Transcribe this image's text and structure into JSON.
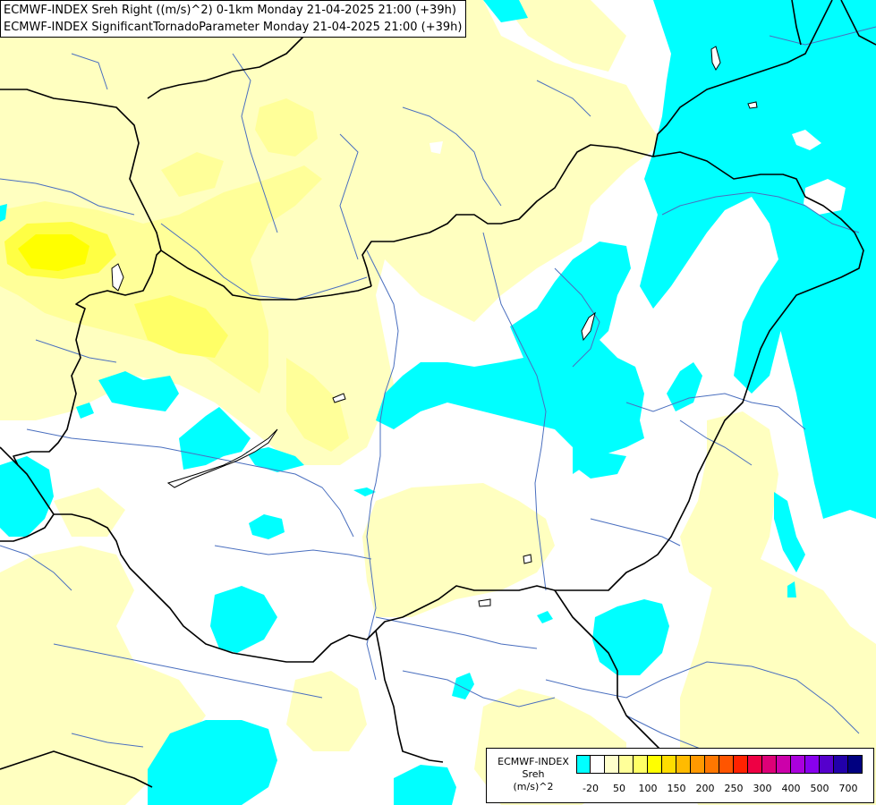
{
  "header": {
    "line1": "ECMWF-INDEX Sreh Right ((m/s)^2) 0-1km Monday 21-04-2025 21:00 (+39h)",
    "line2": "ECMWF-INDEX SignificantTornadoParameter Monday 21-04-2025 21:00 (+39h)"
  },
  "legend": {
    "line1": "ECMWF-INDEX",
    "line2": "Sreh",
    "line3": "(m/s)^2",
    "tick_labels": [
      "-20",
      "50",
      "100",
      "150",
      "200",
      "250",
      "300",
      "400",
      "500",
      "700"
    ],
    "colors": [
      "#00ffff",
      "#ffffff",
      "#ffffcc",
      "#ffff99",
      "#ffff66",
      "#ffff00",
      "#ffdd00",
      "#ffbb00",
      "#ff9900",
      "#ff7700",
      "#ff5500",
      "#ff2200",
      "#ee0044",
      "#dd0077",
      "#cc00aa",
      "#aa00dd",
      "#8800ee",
      "#5500cc",
      "#2200aa",
      "#000080"
    ]
  },
  "palette": {
    "cyan": "#00ffff",
    "pale_yellow": "#ffffc0",
    "light_yellow": "#ffff99",
    "yellow": "#ffff00",
    "border": "#000000",
    "river": "#4a6fbf"
  }
}
